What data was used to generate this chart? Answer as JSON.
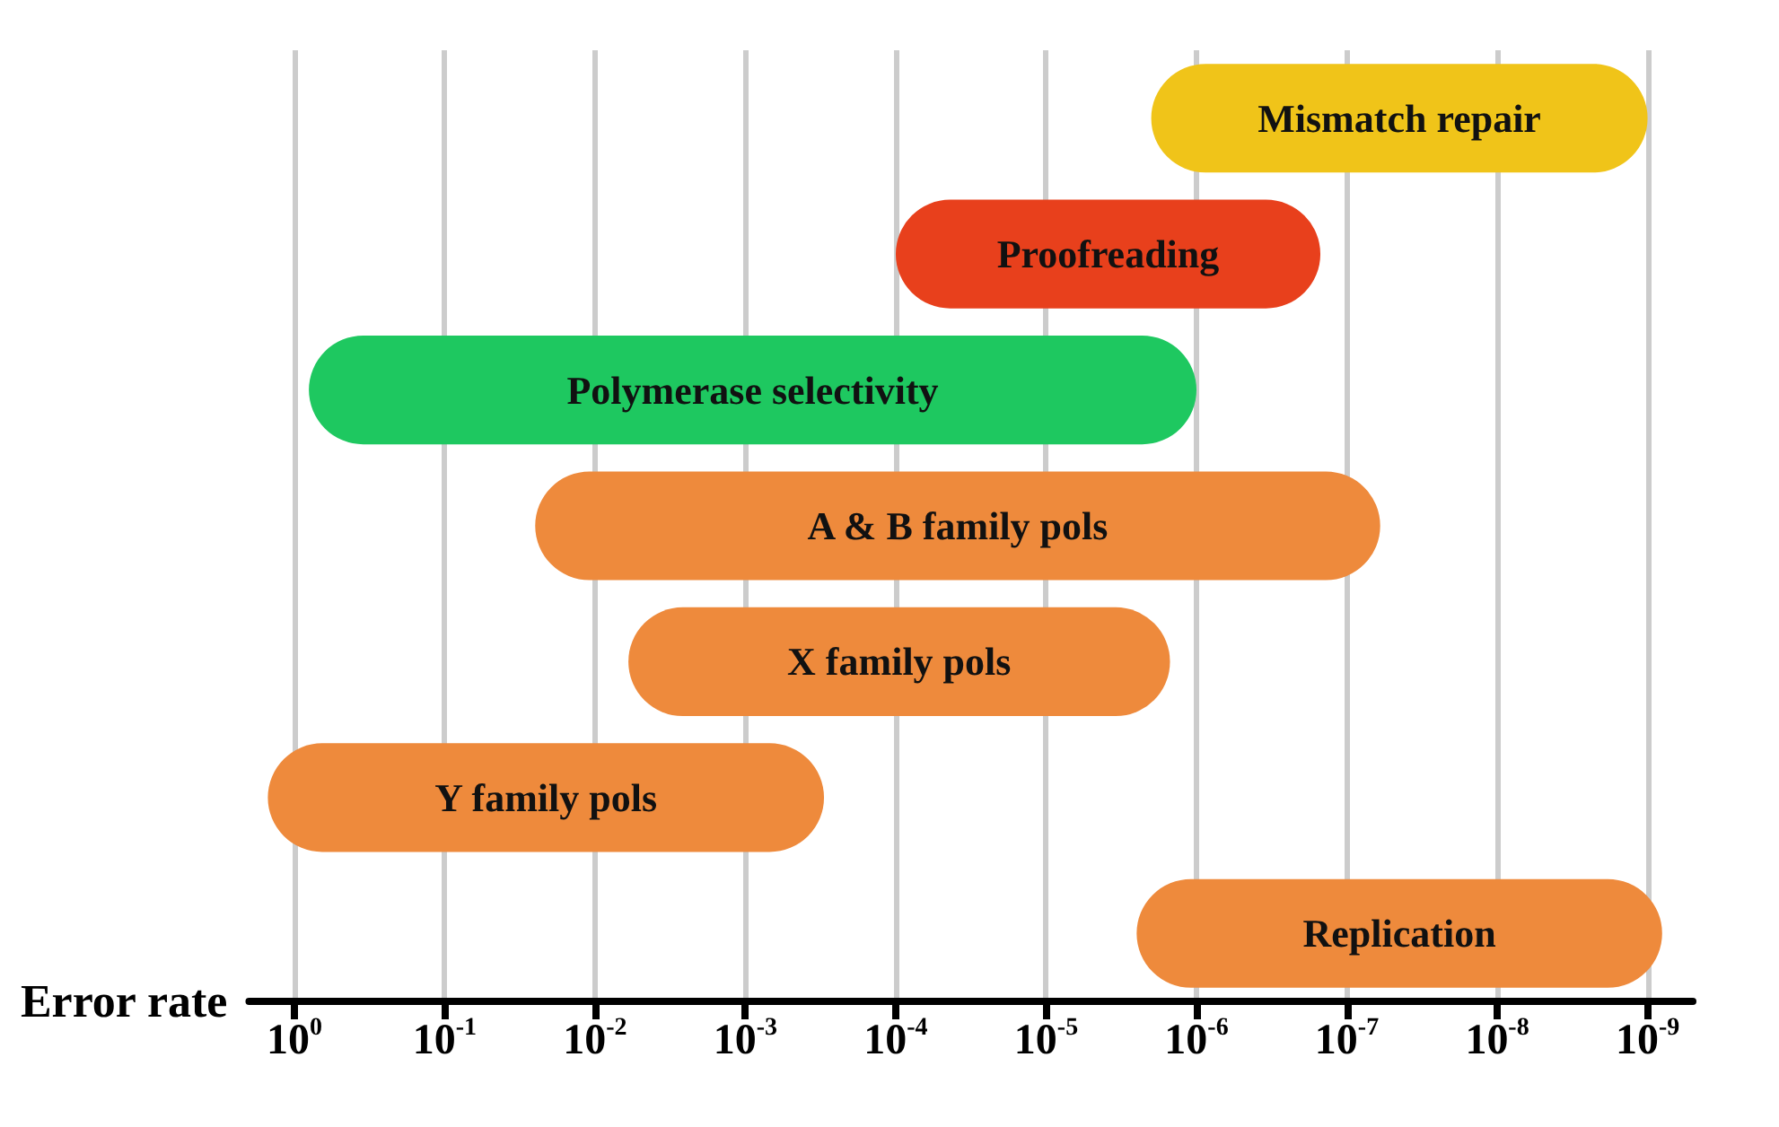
{
  "chart_data": {
    "type": "bar",
    "orientation": "horizontal",
    "ylabel": "Error rate",
    "categories": [
      "Mismatch repair",
      "Proofreading",
      "Polymerase selectivity",
      "A & B family pols",
      "X family pols",
      "Y family pols",
      "Replication"
    ],
    "base": [
      2e-06,
      0.0001,
      0.8,
      0.025,
      0.006,
      1.5,
      2.5e-06
    ],
    "values": [
      -1.999e-06,
      -9.985e-05,
      -0.799999,
      -0.02499994,
      -0.0059985,
      -1.4997,
      -2.4992e-06
    ],
    "colors": [
      "#f0c419",
      "#e8401c",
      "#1ec860",
      "#ee8a3c",
      "#ee8a3c",
      "#ee8a3c",
      "#ee8a3c"
    ],
    "xlim": [
      2,
      5e-10
    ],
    "log": "x",
    "xticks": [
      {
        "value": 1,
        "label": "10$^{0}$"
      },
      {
        "value": 0.1,
        "label": "10$^{-1}$"
      },
      {
        "value": 0.01,
        "label": "10$^{-2}$"
      },
      {
        "value": 0.001,
        "label": "10$^{-3}$"
      },
      {
        "value": 0.0001,
        "label": "10$^{-4}$"
      },
      {
        "value": 1e-05,
        "label": "10$^{-5}$"
      },
      {
        "value": 1e-06,
        "label": "10$^{-6}$"
      },
      {
        "value": 1e-07,
        "label": "10$^{-7}$"
      },
      {
        "value": 1e-08,
        "label": "10$^{-8}$"
      },
      {
        "value": 1e-09,
        "label": "10$^{-9}$"
      }
    ],
    "grid": "x",
    "tick_labels": "x"
  }
}
